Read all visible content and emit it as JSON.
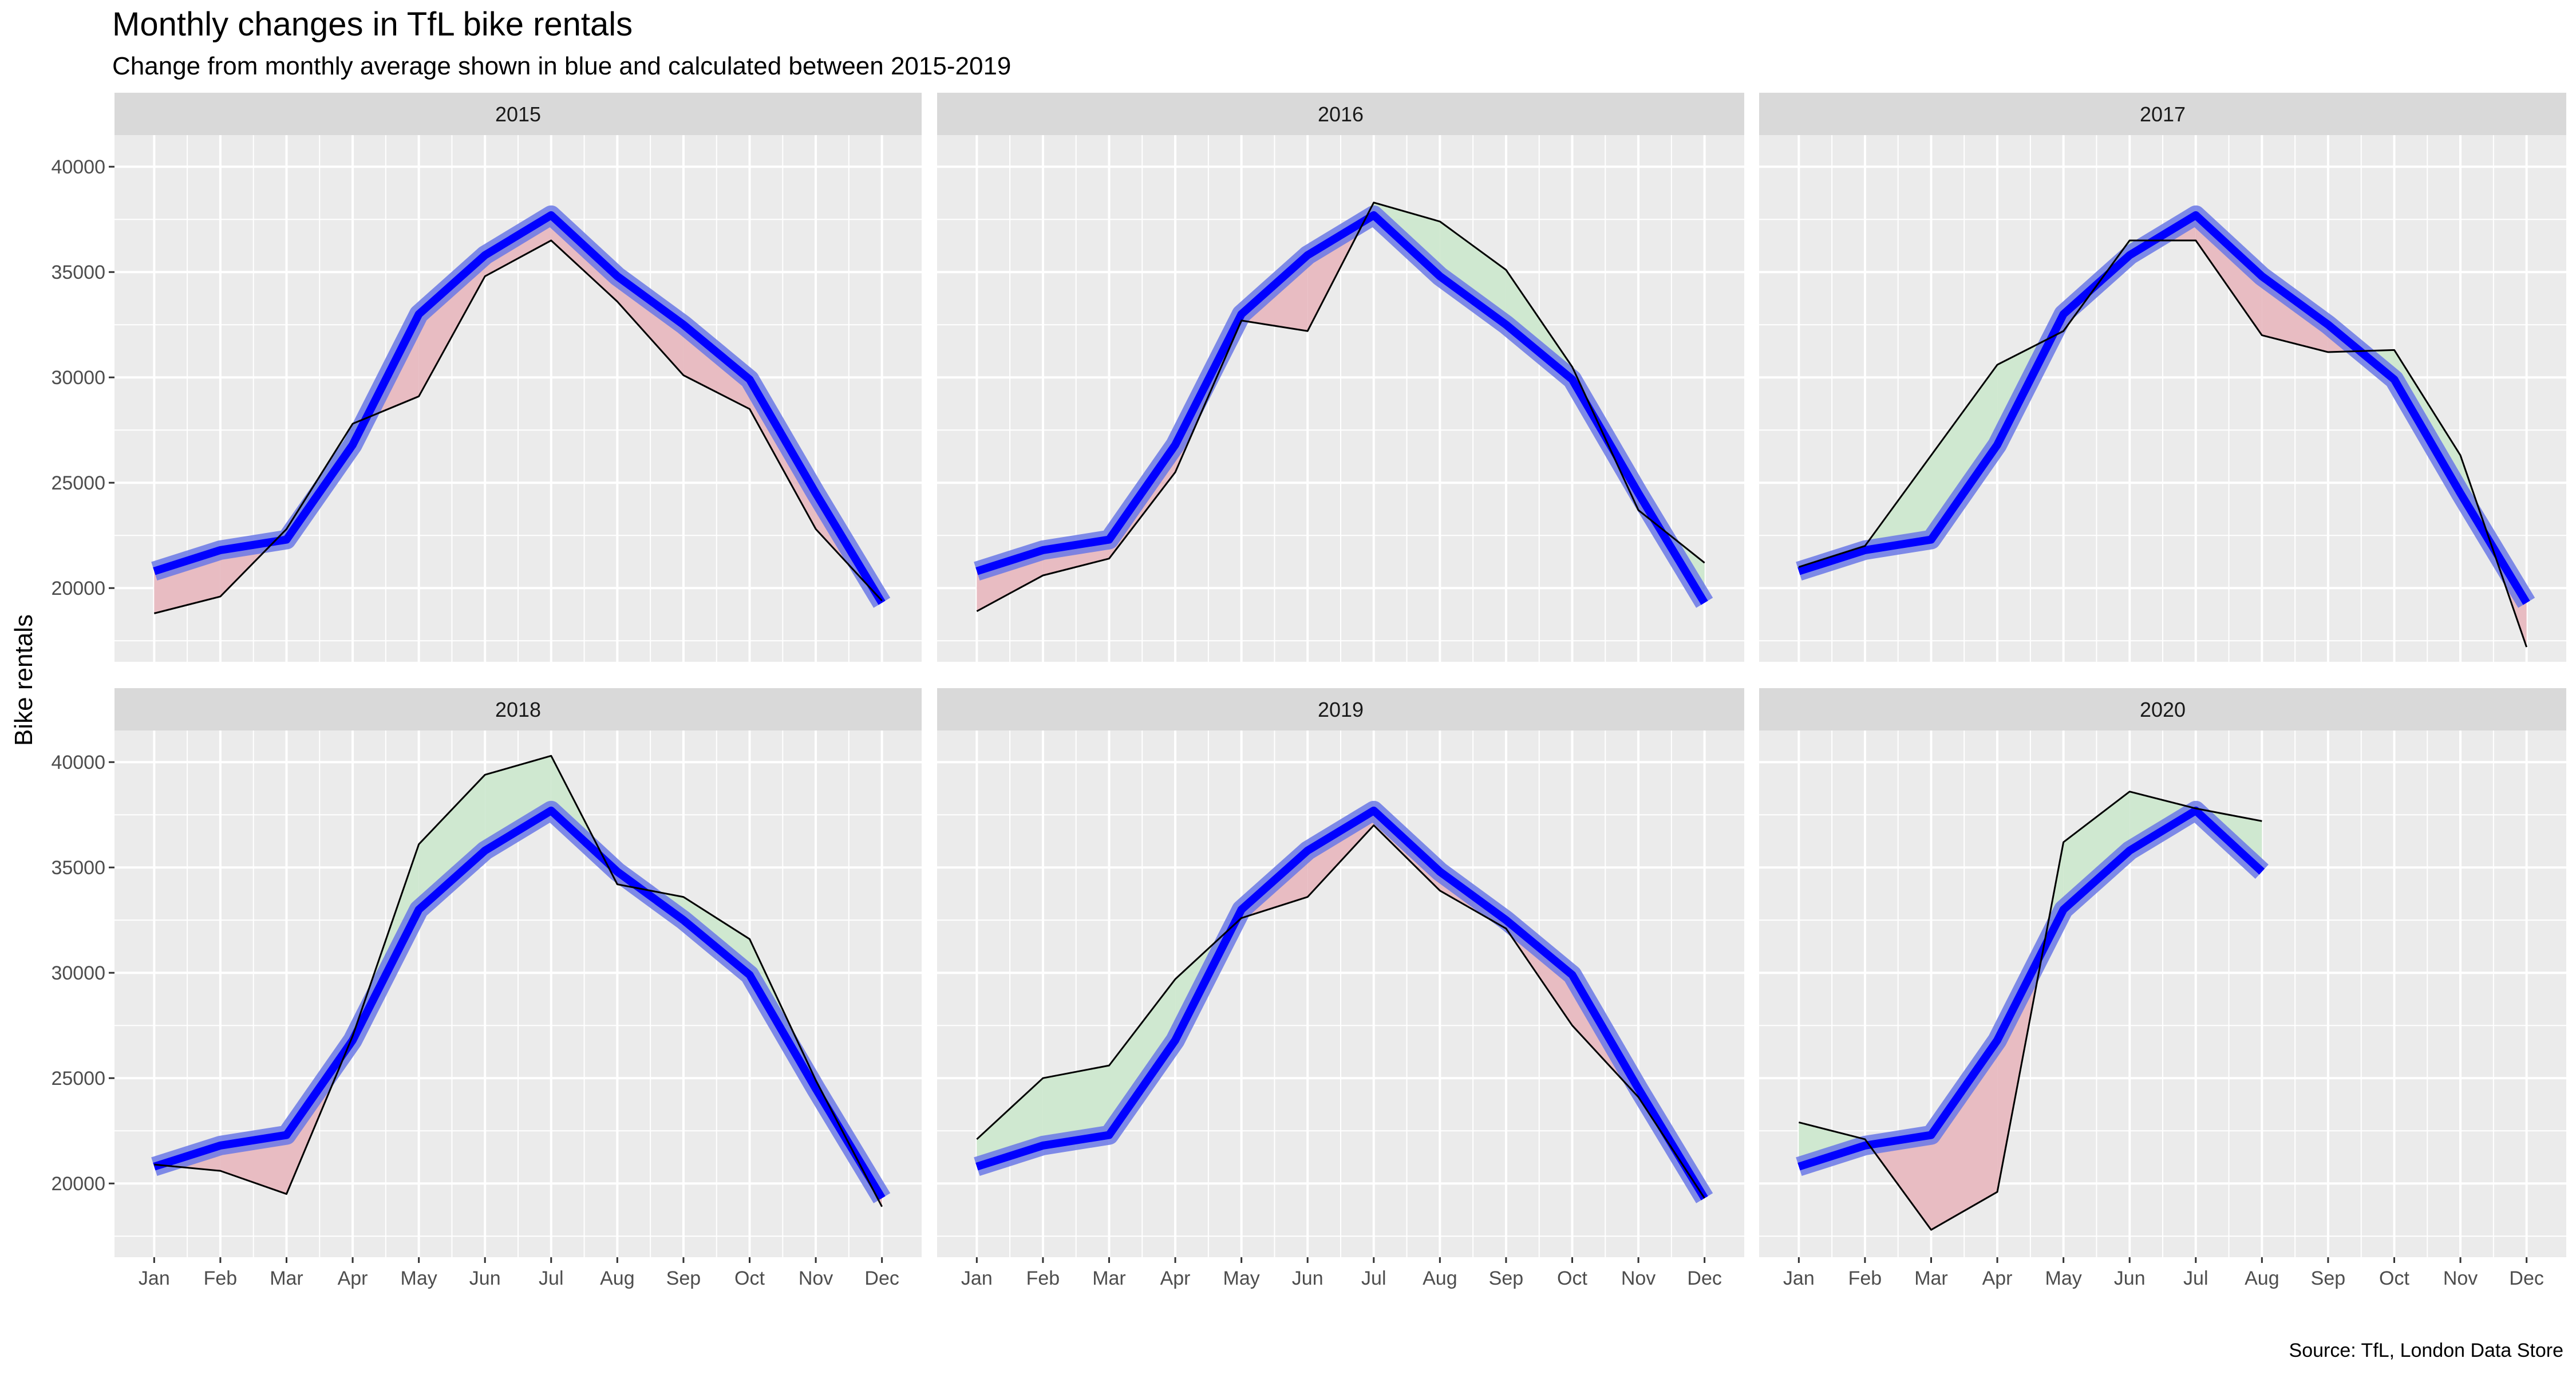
{
  "chart_data": {
    "type": "line",
    "title": "Monthly changes in TfL bike rentals",
    "subtitle": "Change from monthly average shown in blue and calculated between 2015-2019",
    "caption": "Source: TfL, London Data Store",
    "ylabel": "Bike rentals",
    "xlabel": "",
    "categories": [
      "Jan",
      "Feb",
      "Mar",
      "Apr",
      "May",
      "Jun",
      "Jul",
      "Aug",
      "Sep",
      "Oct",
      "Nov",
      "Dec"
    ],
    "ylim": [
      16500,
      41500
    ],
    "yticks": [
      20000,
      25000,
      30000,
      35000,
      40000
    ],
    "ytick_labels": [
      "20000",
      "25000",
      "30000",
      "35000",
      "40000"
    ],
    "grid": true,
    "colors": {
      "panel_bg": "#ebebeb",
      "strip_bg": "#d9d9d9",
      "grid": "#ffffff",
      "average_line": "#0000ff",
      "actual_line": "#000000",
      "above_fill": "#cfe8d0",
      "below_fill": "#e8bcc2"
    },
    "average": [
      20800,
      21800,
      22300,
      26800,
      33000,
      35800,
      37700,
      34800,
      32500,
      29900,
      24500,
      19300
    ],
    "panels": [
      {
        "label": "2015",
        "values": [
          18800,
          19600,
          22800,
          27800,
          29100,
          34800,
          36500,
          33600,
          30100,
          28500,
          22800,
          19400
        ]
      },
      {
        "label": "2016",
        "values": [
          18900,
          20600,
          21400,
          25500,
          32700,
          32200,
          38300,
          37400,
          35100,
          30500,
          23700,
          21200
        ]
      },
      {
        "label": "2017",
        "values": [
          21000,
          22000,
          26300,
          30600,
          32200,
          36500,
          36500,
          32000,
          31200,
          31300,
          26300,
          17200
        ]
      },
      {
        "label": "2018",
        "values": [
          20900,
          20600,
          19500,
          27000,
          36100,
          39400,
          40300,
          34200,
          33600,
          31600,
          24900,
          18900
        ]
      },
      {
        "label": "2019",
        "values": [
          22100,
          25000,
          25600,
          29700,
          32600,
          33600,
          37000,
          33900,
          32100,
          27500,
          24100,
          19300
        ]
      },
      {
        "label": "2020",
        "values": [
          22900,
          22100,
          17800,
          19600,
          36200,
          38600,
          37800,
          37200,
          null,
          null,
          null,
          null
        ]
      }
    ]
  }
}
